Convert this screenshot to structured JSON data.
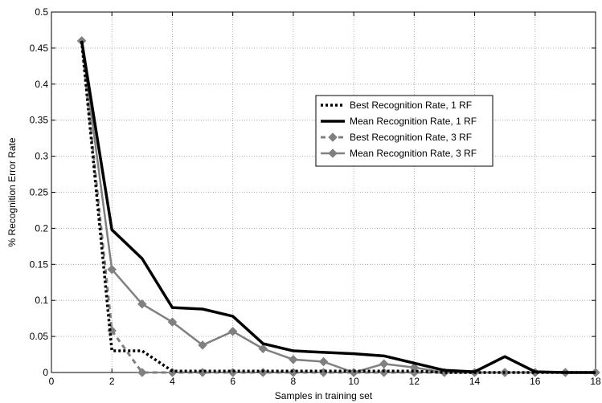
{
  "chart_data": {
    "type": "line",
    "title": "",
    "xlabel": "Samples in training set",
    "ylabel": "% Recognition Error Rate",
    "xlim": [
      0,
      18
    ],
    "ylim": [
      0,
      0.5
    ],
    "x_ticks": [
      "0",
      "2",
      "4",
      "6",
      "8",
      "10",
      "12",
      "14",
      "16",
      "18"
    ],
    "y_ticks": [
      "0",
      "0.05",
      "0.1",
      "0.15",
      "0.2",
      "0.25",
      "0.3",
      "0.35",
      "0.4",
      "0.45",
      "0.5"
    ],
    "grid": true,
    "legend_position": "upper-right",
    "series": [
      {
        "name": "Best Recognition Rate, 1 RF",
        "color": "#000000",
        "style": "dotted",
        "marker": "none",
        "x": [
          1,
          2,
          3,
          4,
          5,
          6,
          7,
          8,
          9,
          10,
          11,
          12,
          13,
          14,
          15,
          16,
          17,
          18
        ],
        "y": [
          0.46,
          0.03,
          0.03,
          0.002,
          0.002,
          0.002,
          0.002,
          0.002,
          0.002,
          0.002,
          0.002,
          0.002,
          0.0,
          0.0,
          0.0,
          0.0,
          0.0,
          0.0
        ]
      },
      {
        "name": "Mean Recognition Rate, 1 RF",
        "color": "#000000",
        "style": "solid",
        "marker": "none",
        "x": [
          1,
          2,
          3,
          4,
          5,
          6,
          7,
          8,
          9,
          10,
          11,
          12,
          13,
          14,
          15,
          16,
          17,
          18
        ],
        "y": [
          0.46,
          0.198,
          0.158,
          0.09,
          0.088,
          0.078,
          0.04,
          0.03,
          0.028,
          0.026,
          0.023,
          0.013,
          0.003,
          0.001,
          0.022,
          0.001,
          0.0,
          0.0
        ]
      },
      {
        "name": "Best Recognition Rate, 3 RF",
        "color": "#808080",
        "style": "dashed",
        "marker": "diamond",
        "x": [
          1,
          2,
          3,
          4,
          5,
          6,
          7,
          8,
          9,
          10,
          11,
          12,
          13,
          14,
          15,
          16,
          17,
          18
        ],
        "y": [
          0.46,
          0.058,
          0.0,
          0.0,
          0.0,
          0.0,
          0.0,
          0.0,
          0.0,
          0.0,
          0.0,
          0.0,
          0.0,
          0.0,
          0.0,
          0.0,
          0.0,
          0.0
        ]
      },
      {
        "name": "Mean Recognition Rate, 3 RF",
        "color": "#808080",
        "style": "solid",
        "marker": "diamond",
        "x": [
          1,
          2,
          3,
          4,
          5,
          6,
          7,
          8,
          9,
          10,
          11,
          12,
          13,
          14,
          15,
          16,
          17,
          18
        ],
        "y": [
          0.46,
          0.143,
          0.095,
          0.07,
          0.038,
          0.057,
          0.033,
          0.018,
          0.015,
          0.0,
          0.012,
          0.007,
          0.0,
          0.0,
          0.0,
          0.0,
          0.0,
          0.0
        ]
      }
    ]
  }
}
